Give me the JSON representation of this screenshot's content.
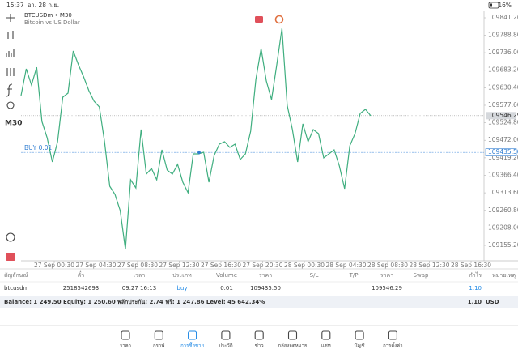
{
  "status_bar": {
    "time": "15:37",
    "date": "อา. 28 ก.ย.",
    "battery": "16%"
  },
  "chart": {
    "type": "line",
    "title": "BTCUSDm • M30",
    "subtitle": "Bitcoin vs US Dollar",
    "timeframe": "M30",
    "color": "#3fae7f",
    "values": [
      109606.9,
      109687.4,
      109638.6,
      109692.3,
      109528.8,
      109479.9,
      109406.7,
      109467.7,
      109602.0,
      109614.2,
      109741.2,
      109699.6,
      109663.0,
      109621.5,
      109589.8,
      109572.7,
      109467.7,
      109333.4,
      109309.0,
      109260.2,
      109143.0,
      109353.0,
      109328.5,
      109504.4,
      109370.1,
      109387.2,
      109353.0,
      109443.3,
      109382.3,
      109370.1,
      109399.4,
      109345.7,
      109313.9,
      109431.1,
      109431.1,
      109436.0,
      109345.7,
      109426.2,
      109460.4,
      109467.7,
      109450.6,
      109460.4,
      109414.0,
      109431.1,
      109499.5,
      109655.7,
      109748.5,
      109650.9,
      109594.7,
      109699.6,
      109809.5,
      109577.6,
      109504.4,
      109406.7,
      109521.5,
      109467.7,
      109504.4,
      109492.2,
      109418.9,
      109431.1,
      109443.3,
      109394.5,
      109326.1,
      109455.5,
      109492.2,
      109553.2,
      109565.4,
      109546.29
    ],
    "ylim": [
      109113.7,
      109860.8
    ],
    "yticks": [
      109841.26,
      {
        "value": 109788.8,
        "label": "109788.80"
      },
      {
        "value": 109736.0,
        "label": "109736.00"
      },
      {
        "value": 109683.2,
        "label": "109683.20"
      },
      {
        "value": 109630.4,
        "label": "109630.40"
      },
      {
        "value": 109577.6,
        "label": "109577.60"
      },
      {
        "value": 109524.8,
        "label": "109524.80"
      },
      {
        "value": 109472.0,
        "label": "109472.00"
      },
      {
        "value": 109419.2,
        "label": "109419.20"
      },
      {
        "value": 109366.4,
        "label": "109366.40"
      },
      {
        "value": 109313.6,
        "label": "109313.60"
      },
      {
        "value": 109260.8,
        "label": "109260.80"
      },
      {
        "value": 109208.0,
        "label": "109208.00"
      },
      {
        "value": 109155.2,
        "label": "109155.20"
      }
    ],
    "xtick_labels": [
      "27 Sep 00:30",
      "27 Sep 04:30",
      "27 Sep 08:30",
      "27 Sep 12:30",
      "27 Sep 16:30",
      "27 Sep 20:30",
      "28 Sep 00:30",
      "28 Sep 04:30",
      "28 Sep 08:30",
      "28 Sep 12:30",
      "28 Sep 16:30"
    ],
    "current_price": 109546.29,
    "order": {
      "label": "BUY 0.01",
      "price": {
        "value": 109435.5,
        "label": "109435.50"
      }
    }
  },
  "table": {
    "columns": [
      "สัญลักษณ์",
      "ตั๋ว",
      "เวลา",
      "ประเภท",
      "Volume",
      "ราคา",
      "S/L",
      "T/P",
      "ราคา",
      "Swap",
      "กำไร",
      "หมายเหตุ"
    ],
    "row": [
      "btcusdm",
      "2518542693",
      "09.27 16:13",
      "buy",
      "0.01",
      "109435.50",
      "109546.29",
      "1.10"
    ],
    "balance": "Balance: 1 249.50 Equity: 1 250.60 พลักประกัน: 2.74 ฟรี: 1 247.86 Level: 45 642.34%",
    "total_profit": "1.10",
    "currency": "USD"
  },
  "nav": {
    "items": [
      "ราคา",
      "กราฟ",
      "การซื้อขาย",
      "ประวัติ",
      "ข่าว",
      "กล่องจดหมาย",
      "แชท",
      "บัญชี",
      "การตั้งค่า"
    ],
    "active": 2
  }
}
